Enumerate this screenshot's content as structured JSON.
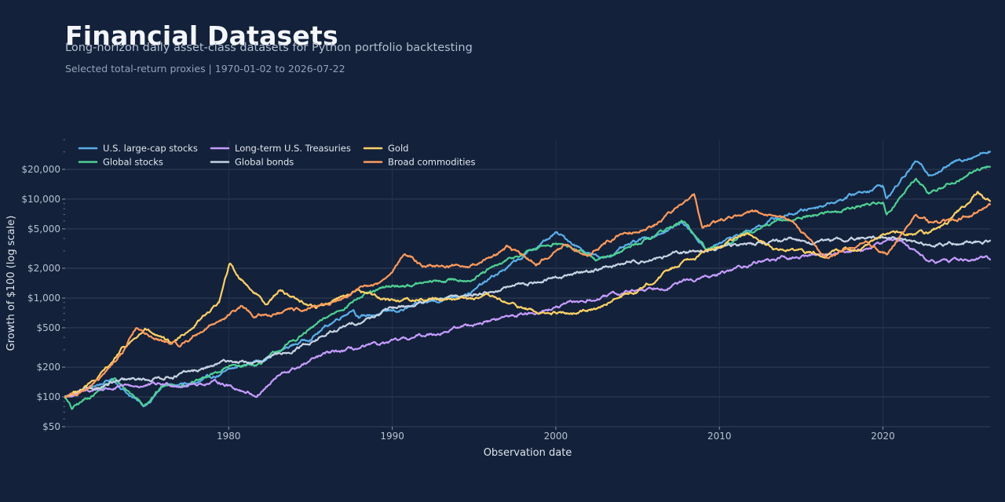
{
  "header": {
    "title": "Financial Datasets",
    "subtitle": "Long-horizon daily asset-class datasets for Python portfolio backtesting",
    "caption": "Selected total-return proxies | 1970-01-02 to 2026-07-22"
  },
  "chart_data": {
    "type": "line",
    "xlabel": "Observation date",
    "ylabel": "Growth of $100 (log scale)",
    "yscale": "log",
    "xlim": [
      1970.0,
      2026.55
    ],
    "ylim": [
      50,
      40000
    ],
    "x_ticks": [
      1980,
      1990,
      2000,
      2010,
      2020
    ],
    "x_tick_labels": [
      "1980",
      "1990",
      "2000",
      "2010",
      "2020"
    ],
    "y_ticks": [
      50,
      100,
      200,
      500,
      1000,
      2000,
      5000,
      10000,
      20000
    ],
    "y_tick_labels": [
      "$50",
      "$100",
      "$200",
      "$500",
      "$1,000",
      "$2,000",
      "$5,000",
      "$10,000",
      "$20,000"
    ],
    "grid": true,
    "legend_position": "top-left",
    "series": [
      {
        "name": "U.S. large-cap stocks",
        "color": "#5aaee8",
        "x": [
          1970.0,
          1972.9,
          1974.8,
          1976.0,
          1978.0,
          1980.0,
          1982.5,
          1985.0,
          1987.6,
          1988.0,
          1990.5,
          1995.0,
          1998.0,
          2000.0,
          2002.7,
          2007.8,
          2009.2,
          2013.0,
          2016.0,
          2020.0,
          2020.2,
          2022.0,
          2022.8,
          2025.0,
          2026.55
        ],
        "y": [
          100,
          150,
          80,
          130,
          135,
          180,
          260,
          400,
          800,
          650,
          750,
          1200,
          2600,
          4500,
          2500,
          5800,
          3100,
          6000,
          8500,
          14000,
          10000,
          24000,
          18000,
          26000,
          32000
        ]
      },
      {
        "name": "Global stocks",
        "color": "#4fcf93",
        "x": [
          1970.0,
          1970.4,
          1973.0,
          1974.8,
          1976.0,
          1978.0,
          1980.0,
          1982.0,
          1985.0,
          1987.8,
          1990.0,
          1995.0,
          1998.0,
          2000.0,
          2002.7,
          2007.8,
          2009.2,
          2013.0,
          2016.0,
          2020.0,
          2020.2,
          2022.0,
          2022.8,
          2025.0,
          2026.55
        ],
        "y": [
          100,
          75,
          150,
          85,
          130,
          140,
          200,
          220,
          480,
          1000,
          1300,
          1600,
          2800,
          3700,
          2400,
          6000,
          3000,
          5500,
          7000,
          9500,
          7000,
          16000,
          11500,
          17000,
          22000
        ]
      },
      {
        "name": "Long-term U.S. Treasuries",
        "color": "#c59cff",
        "x": [
          1970.0,
          1972.0,
          1975.0,
          1979.5,
          1981.7,
          1983.0,
          1986.0,
          1990.0,
          1995.0,
          2000.0,
          2005.0,
          2010.0,
          2012.5,
          2015.0,
          2019.0,
          2020.5,
          2021.5,
          2022.8,
          2026.55
        ],
        "y": [
          100,
          120,
          130,
          140,
          105,
          160,
          270,
          350,
          550,
          800,
          1200,
          1700,
          2400,
          2600,
          3200,
          4000,
          3500,
          2300,
          2500
        ]
      },
      {
        "name": "Global bonds",
        "color": "#c7d3e3",
        "x": [
          1970.0,
          1973.0,
          1975.0,
          1978.0,
          1980.0,
          1982.0,
          1986.0,
          1990.0,
          1995.0,
          2000.0,
          2005.0,
          2010.0,
          2013.0,
          2016.0,
          2020.5,
          2022.8,
          2026.55
        ],
        "y": [
          100,
          140,
          150,
          180,
          230,
          220,
          430,
          780,
          1100,
          1600,
          2400,
          3200,
          3800,
          3700,
          4200,
          3400,
          3800
        ]
      },
      {
        "name": "Gold",
        "color": "#ffd166",
        "x": [
          1970.0,
          1972.0,
          1973.5,
          1974.9,
          1976.5,
          1978.0,
          1979.4,
          1980.05,
          1980.5,
          1982.3,
          1983.1,
          1985.3,
          1987.8,
          1990.0,
          1993.0,
          1996.0,
          1999.0,
          2001.3,
          2005.0,
          2008.0,
          2011.7,
          2013.3,
          2015.9,
          2019.0,
          2020.6,
          2022.8,
          2024.0,
          2025.8,
          2026.55
        ],
        "y": [
          100,
          150,
          300,
          480,
          330,
          550,
          900,
          2200,
          1700,
          900,
          1200,
          800,
          1200,
          950,
          1000,
          1000,
          700,
          680,
          1200,
          2500,
          4400,
          3100,
          2800,
          3400,
          4600,
          4500,
          5800,
          12000,
          9500
        ]
      },
      {
        "name": "Broad commodities",
        "color": "#ff9a5c",
        "x": [
          1970.0,
          1972.0,
          1973.5,
          1974.3,
          1975.5,
          1977.0,
          1979.0,
          1980.8,
          1981.5,
          1983.0,
          1985.5,
          1987.5,
          1989.5,
          1990.7,
          1992.0,
          1995.0,
          1997.0,
          1998.8,
          2000.5,
          2002.0,
          2004.0,
          2006.0,
          2008.45,
          2008.95,
          2010.5,
          2012.0,
          2014.5,
          2015.5,
          2016.5,
          2019.0,
          2020.3,
          2022.0,
          2022.8,
          2024.5,
          2026.55
        ],
        "y": [
          100,
          140,
          280,
          500,
          380,
          330,
          550,
          800,
          650,
          700,
          800,
          1100,
          1500,
          2800,
          2100,
          2200,
          3200,
          2200,
          3400,
          2800,
          4500,
          5500,
          11000,
          5000,
          6500,
          7500,
          6000,
          3800,
          2500,
          3800,
          2800,
          7200,
          6000,
          6000,
          8500
        ]
      }
    ]
  }
}
